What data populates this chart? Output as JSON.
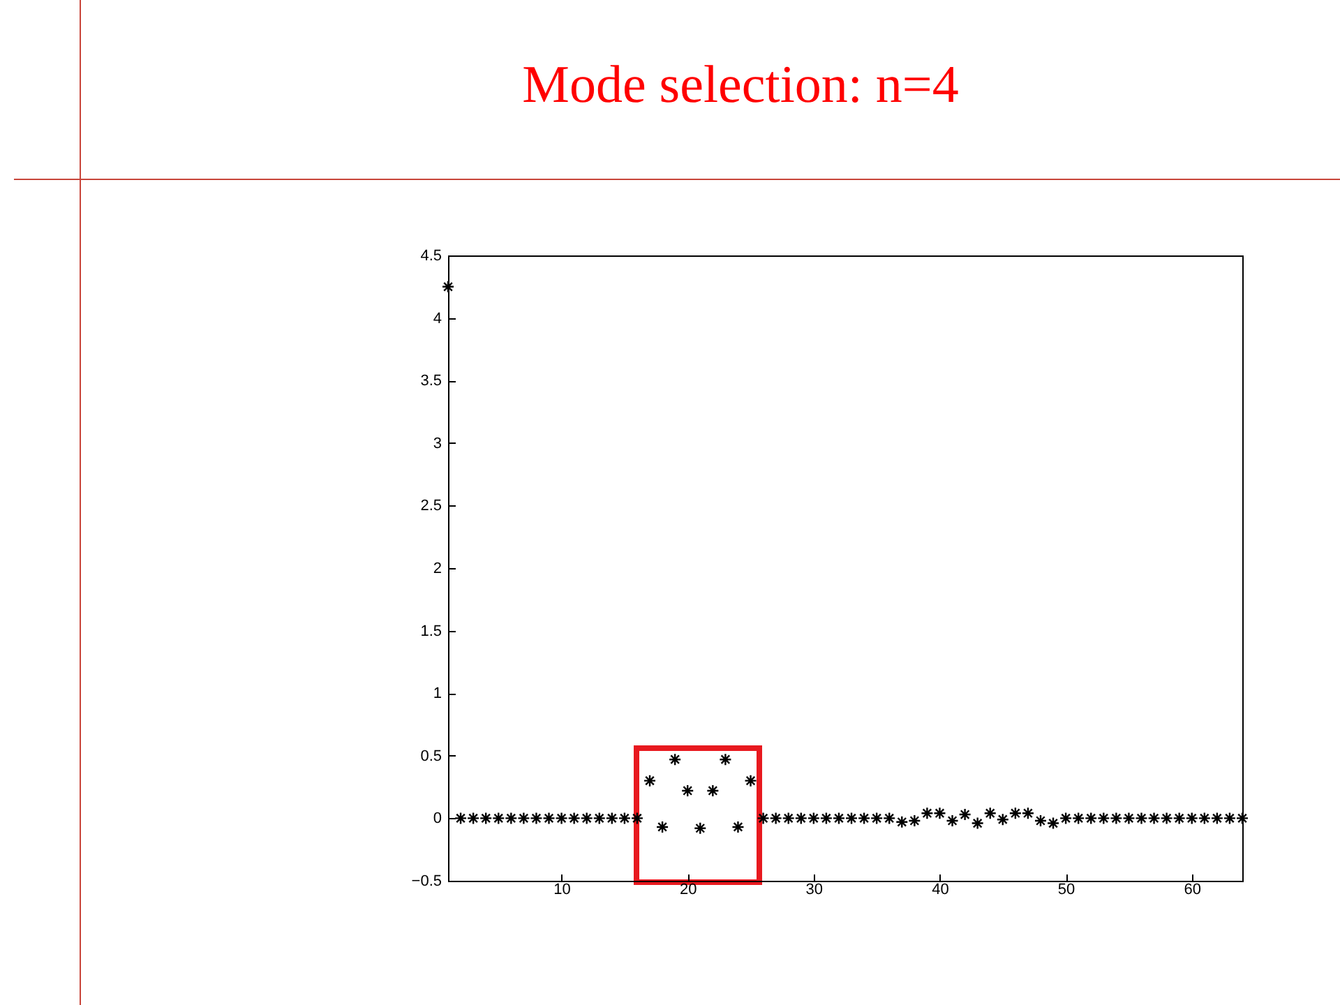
{
  "chart_data": {
    "type": "scatter",
    "title": "Mode selection: n=4",
    "x": [
      1,
      2,
      3,
      4,
      5,
      6,
      7,
      8,
      9,
      10,
      11,
      12,
      13,
      14,
      15,
      16,
      17,
      18,
      19,
      20,
      21,
      22,
      23,
      24,
      25,
      26,
      27,
      28,
      29,
      30,
      31,
      32,
      33,
      34,
      35,
      36,
      37,
      38,
      39,
      40,
      41,
      42,
      43,
      44,
      45,
      46,
      47,
      48,
      49,
      50,
      51,
      52,
      53,
      54,
      55,
      56,
      57,
      58,
      59,
      60,
      61,
      62,
      63,
      64
    ],
    "values": [
      4.25,
      0,
      0,
      0,
      0,
      0,
      0,
      0,
      0,
      0,
      0,
      0,
      0,
      0,
      0,
      0,
      0.3,
      -0.07,
      0.47,
      0.22,
      -0.08,
      0.22,
      0.47,
      -0.07,
      0.3,
      0,
      0,
      0,
      0,
      0,
      0,
      0,
      0,
      0,
      0,
      0,
      -0.03,
      -0.02,
      0.04,
      0.04,
      -0.02,
      0.03,
      -0.04,
      0.04,
      -0.01,
      0.04,
      0.04,
      -0.02,
      -0.04,
      0,
      0,
      0,
      0,
      0,
      0,
      0,
      0,
      0,
      0,
      0,
      0,
      0,
      0,
      0
    ],
    "color": "#000000",
    "marker": "cross",
    "grid": false,
    "xlim": [
      1,
      64
    ],
    "xticks": [
      10,
      20,
      30,
      40,
      50,
      60
    ],
    "ylim": [
      -0.5,
      4.5
    ],
    "yticks": [
      -0.5,
      0,
      0.5,
      1,
      1.5,
      2,
      2.5,
      3,
      3.5,
      4,
      4.5
    ]
  }
}
